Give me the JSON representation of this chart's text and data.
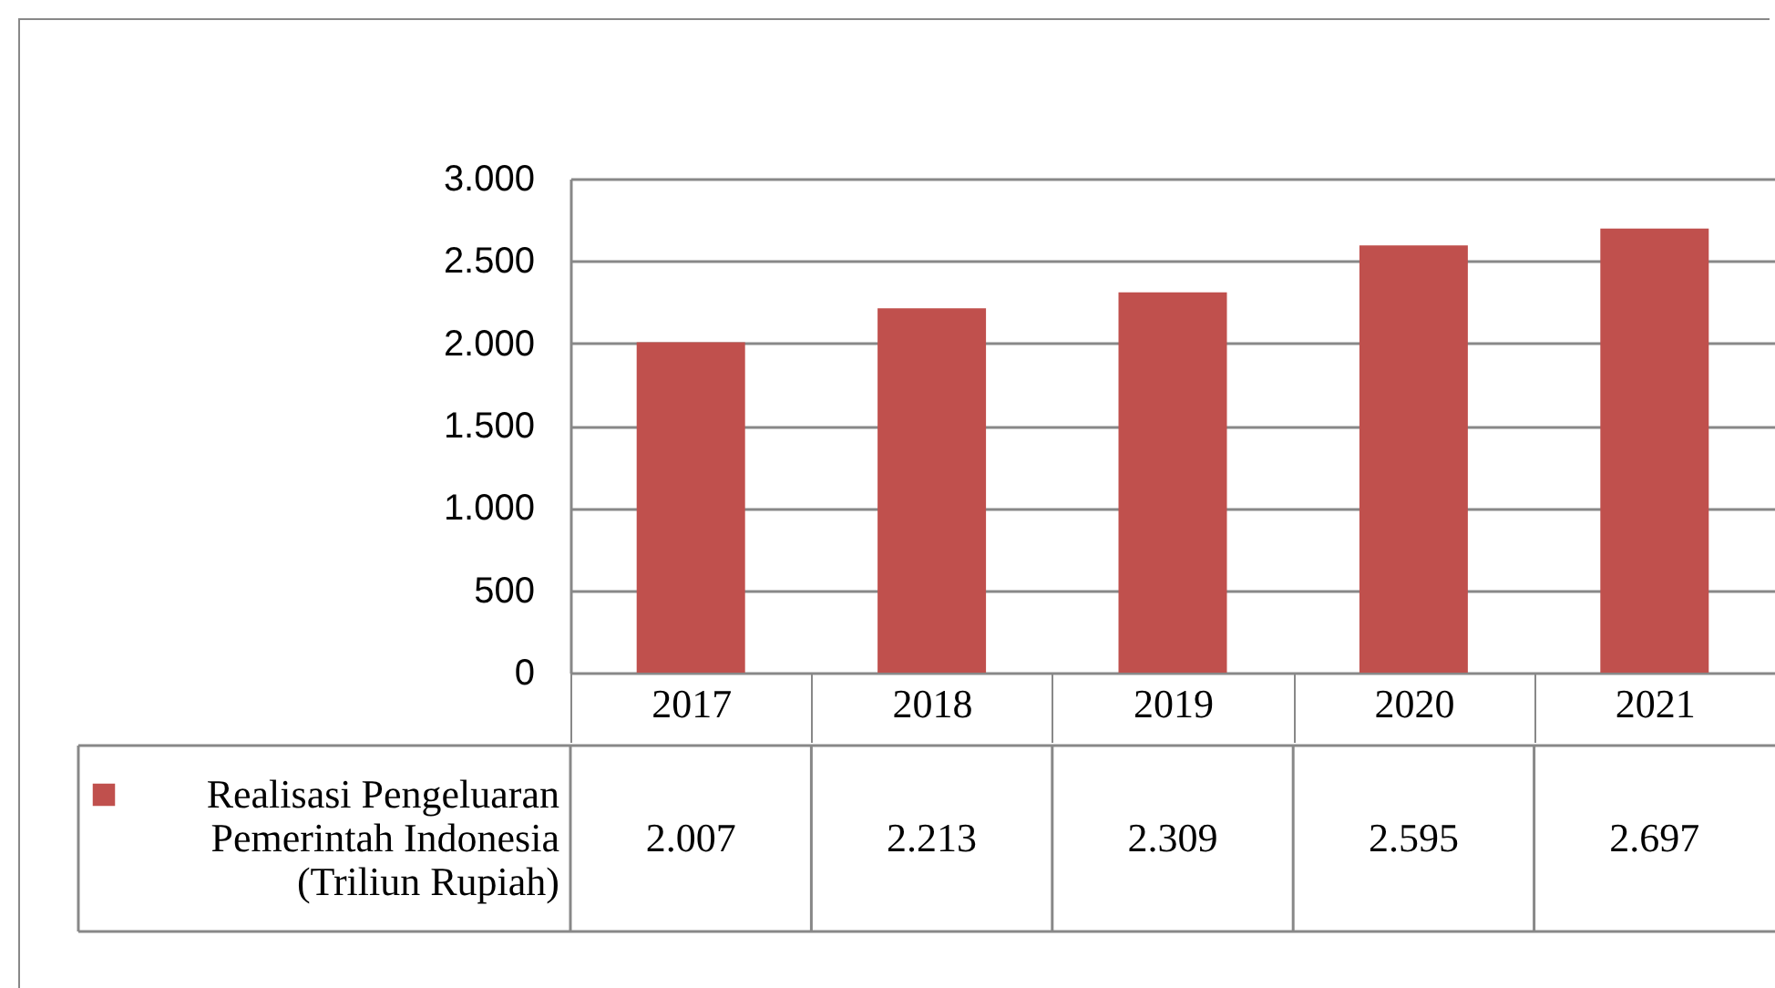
{
  "chart_data": {
    "type": "bar",
    "categories": [
      "2017",
      "2018",
      "2019",
      "2020",
      "2021"
    ],
    "series": [
      {
        "name": "Realisasi Pengeluaran Pemerintah Indonesia (Triliun Rupiah)",
        "color": "#c0504d",
        "values": [
          2007,
          2213,
          2309,
          2595,
          2697
        ],
        "value_labels": [
          "2.007",
          "2.213",
          "2.309",
          "2.595",
          "2.697"
        ]
      }
    ],
    "ylim": [
      0,
      3000
    ],
    "yticks": [
      {
        "value": 0,
        "label": "0"
      },
      {
        "value": 500,
        "label": "500"
      },
      {
        "value": 1000,
        "label": "1.000"
      },
      {
        "value": 1500,
        "label": "1.500"
      },
      {
        "value": 2000,
        "label": "2.000"
      },
      {
        "value": 2500,
        "label": "2.500"
      },
      {
        "value": 3000,
        "label": "3.000"
      }
    ],
    "grid": "y",
    "legend": "bottom left"
  }
}
